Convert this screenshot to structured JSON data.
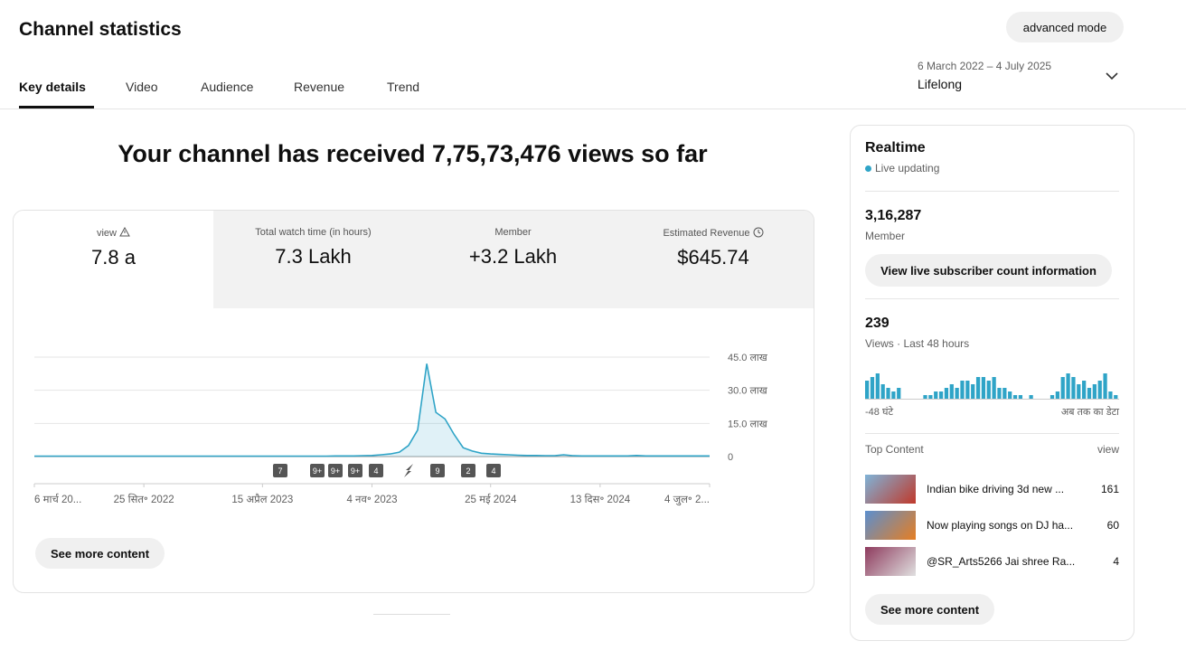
{
  "header": {
    "title": "Channel statistics",
    "button": "advanced mode",
    "tabs": [
      "Key details",
      "Video",
      "Audience",
      "Revenue",
      "Trend"
    ],
    "date_range": "6 March 2022 – 4 July 2025",
    "period": "Lifelong"
  },
  "headline": "Your channel has received 7,75,73,476 views so far",
  "metrics": [
    {
      "label": "view",
      "value": "7.8 a"
    },
    {
      "label": "Total watch time (in hours)",
      "value": "7.3 Lakh"
    },
    {
      "label": "Member",
      "value": "+3.2 Lakh"
    },
    {
      "label": "Estimated Revenue",
      "value": "$645.74"
    }
  ],
  "see_more": "See more content",
  "chart_data": [
    {
      "type": "line",
      "color": "#2fa4c7",
      "values": [
        0.2,
        0.2,
        0.2,
        0.2,
        0.2,
        0.2,
        0.2,
        0.2,
        0.2,
        0.2,
        0.2,
        0.2,
        0.2,
        0.2,
        0.2,
        0.2,
        0.2,
        0.2,
        0.2,
        0.2,
        0.2,
        0.2,
        0.2,
        0.2,
        0.2,
        0.2,
        0.2,
        0.2,
        0.2,
        0.2,
        0.2,
        0.2,
        0.2,
        0.3,
        0.3,
        0.3,
        0.4,
        0.5,
        0.8,
        1.2,
        2,
        5,
        12,
        42,
        20,
        17,
        10,
        4,
        2.5,
        1.5,
        1.2,
        1,
        0.8,
        0.6,
        0.5,
        0.5,
        0.4,
        0.4,
        0.8,
        0.4,
        0.3,
        0.3,
        0.3,
        0.3,
        0.3,
        0.3,
        0.5,
        0.3,
        0.3,
        0.3,
        0.3,
        0.3,
        0.3,
        0.3,
        0.3
      ],
      "ylim": [
        0,
        45
      ],
      "yticks": [
        0,
        {
          "value": 15,
          "label": "15.0 लाख"
        },
        {
          "value": 30,
          "label": "30.0 लाख"
        },
        {
          "value": 45,
          "label": "45.0 लाख"
        }
      ],
      "xlim": [
        0,
        74
      ],
      "xticks": [
        {
          "value": 0,
          "label": "6 मार्च 20..."
        },
        {
          "value": 12,
          "label": "25 सित॰ 2022"
        },
        {
          "value": 25,
          "label": "15 अप्रैल 2023"
        },
        {
          "value": 37,
          "label": "4 नव॰ 2023"
        },
        {
          "value": 50,
          "label": "25 मई 2024"
        },
        {
          "value": 62,
          "label": "13 दिस॰ 2024"
        },
        {
          "value": 74,
          "label": "4 जुल॰ 2..."
        }
      ],
      "grid": true,
      "annotations": [
        "7",
        "9+",
        "9+",
        "9+",
        "4",
        "9",
        "2",
        "4"
      ]
    },
    {
      "type": "bar",
      "color": "#2fa4c7",
      "values": [
        5,
        6,
        7,
        4,
        3,
        2,
        3,
        0,
        0,
        0,
        0,
        1,
        1,
        2,
        2,
        3,
        4,
        3,
        5,
        5,
        4,
        6,
        6,
        5,
        6,
        3,
        3,
        2,
        1,
        1,
        0,
        1,
        0,
        0,
        0,
        1,
        2,
        6,
        7,
        6,
        4,
        5,
        3,
        4,
        5,
        7,
        2,
        1
      ],
      "start_label": "-48 घंटे",
      "end_label": "अब तक का डेटा"
    }
  ],
  "realtime": {
    "title": "Realtime",
    "status": "Live updating",
    "subscribers": "3,16,287",
    "subscribers_label": "Member",
    "button": "View live subscriber count information",
    "views": "239",
    "views_label": "Views · Last 48 hours",
    "top_title": "Top Content",
    "top_metric": "view",
    "items": [
      {
        "title": "Indian bike driving 3d new ...",
        "views": "161"
      },
      {
        "title": "Now playing songs on DJ ha...",
        "views": "60"
      },
      {
        "title": "@SR_Arts5266 Jai shree Ra...",
        "views": "4"
      }
    ],
    "see_more": "See more content"
  }
}
